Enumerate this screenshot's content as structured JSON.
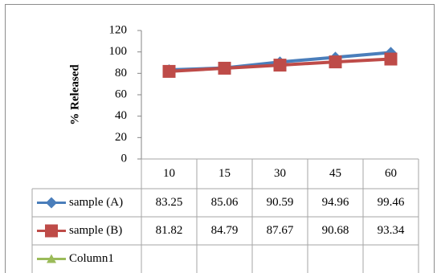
{
  "chart_data": {
    "type": "line",
    "y_label": "% Released",
    "categories": [
      "10",
      "15",
      "30",
      "45",
      "60"
    ],
    "series": [
      {
        "name": "sample (A)",
        "color": "#4a7ebb",
        "marker": "diamond",
        "values": [
          83.25,
          85.06,
          90.59,
          94.96,
          99.46
        ]
      },
      {
        "name": "sample (B)",
        "color": "#be4b48",
        "marker": "square",
        "values": [
          81.82,
          84.79,
          87.67,
          90.68,
          93.34
        ]
      },
      {
        "name": "Column1",
        "color": "#9bbb59",
        "marker": "triangle",
        "values": [
          null,
          null,
          null,
          null,
          null
        ]
      }
    ],
    "ylim": [
      0,
      120
    ],
    "yticks": [
      0,
      20,
      40,
      60,
      80,
      100,
      120
    ],
    "grid": false,
    "data_table": true
  }
}
